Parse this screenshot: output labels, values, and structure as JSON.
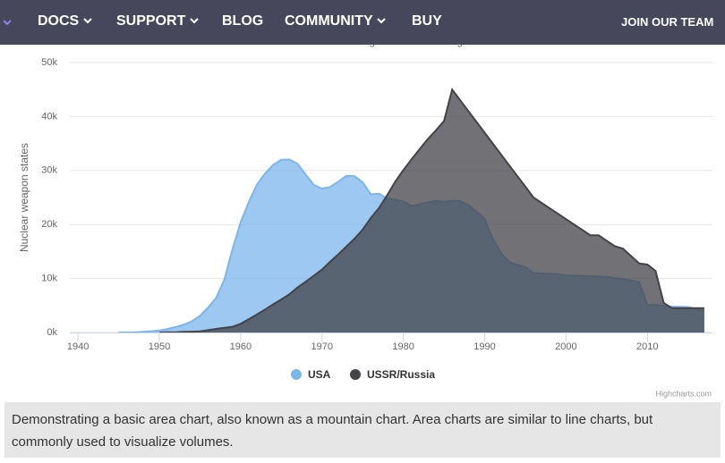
{
  "nav": {
    "items": [
      "DOCS",
      "SUPPORT",
      "BLOG",
      "COMMUNITY",
      "BUY"
    ],
    "cta": "JOIN OUR TEAM"
  },
  "chart_data": {
    "type": "area",
    "subtitle": "Sources: thebulletin.org & armscontrol.org",
    "y_label": "Nuclear weapon states",
    "x": [
      1940,
      1941,
      1942,
      1943,
      1944,
      1945,
      1946,
      1947,
      1948,
      1949,
      1950,
      1951,
      1952,
      1953,
      1954,
      1955,
      1956,
      1957,
      1958,
      1959,
      1960,
      1961,
      1962,
      1963,
      1964,
      1965,
      1966,
      1967,
      1968,
      1969,
      1970,
      1971,
      1972,
      1973,
      1974,
      1975,
      1976,
      1977,
      1978,
      1979,
      1980,
      1981,
      1982,
      1983,
      1984,
      1985,
      1986,
      1987,
      1988,
      1989,
      1990,
      1991,
      1992,
      1993,
      1994,
      1995,
      1996,
      1997,
      1998,
      1999,
      2000,
      2001,
      2002,
      2003,
      2004,
      2005,
      2006,
      2007,
      2008,
      2009,
      2010,
      2011,
      2012,
      2013,
      2014,
      2015,
      2016,
      2017
    ],
    "series": [
      {
        "name": "USA",
        "color": "#7cb5ec",
        "values": [
          null,
          null,
          null,
          null,
          null,
          6,
          11,
          32,
          110,
          235,
          369,
          640,
          1005,
          1436,
          2063,
          3057,
          4618,
          6444,
          9822,
          15468,
          20434,
          24126,
          27387,
          29459,
          31056,
          31982,
          32040,
          31233,
          29224,
          27342,
          26662,
          26956,
          27912,
          28999,
          28965,
          27826,
          25579,
          25722,
          24826,
          24605,
          24304,
          23464,
          23708,
          24099,
          24357,
          24237,
          24401,
          24344,
          23586,
          22380,
          21004,
          17287,
          14747,
          13076,
          12555,
          12144,
          11009,
          10950,
          10871,
          10824,
          10577,
          10527,
          10475,
          10421,
          10358,
          10295,
          10104,
          9914,
          9620,
          9326,
          5113,
          5113,
          4954,
          4804,
          4761,
          4717,
          4368,
          4018
        ]
      },
      {
        "name": "USSR/Russia",
        "color": "#434348",
        "values": [
          null,
          null,
          null,
          null,
          null,
          null,
          null,
          null,
          null,
          null,
          5,
          25,
          50,
          120,
          150,
          200,
          426,
          660,
          869,
          1060,
          1605,
          2471,
          3322,
          4238,
          5221,
          6129,
          7089,
          8339,
          9399,
          10538,
          11643,
          13092,
          14478,
          15915,
          17385,
          19055,
          21205,
          23044,
          25393,
          27935,
          30062,
          32049,
          33952,
          35804,
          37431,
          39197,
          45000,
          43000,
          41000,
          39000,
          37000,
          35000,
          33000,
          31000,
          29000,
          27000,
          25000,
          24000,
          23000,
          22000,
          21000,
          20000,
          19000,
          18000,
          18000,
          17000,
          16000,
          15537,
          14162,
          12787,
          12600,
          11400,
          5500,
          4512,
          4502,
          4502,
          4500,
          4500
        ]
      }
    ],
    "xlim": [
      1939,
      2018
    ],
    "xticks": [
      1940,
      1950,
      1960,
      1970,
      1980,
      1990,
      2000,
      2010
    ],
    "ylim": [
      0,
      50000
    ],
    "yticks": [
      {
        "value": 0,
        "label": "0k"
      },
      {
        "value": 10000,
        "label": "10k"
      },
      {
        "value": 20000,
        "label": "20k"
      },
      {
        "value": 30000,
        "label": "30k"
      },
      {
        "value": 40000,
        "label": "40k"
      },
      {
        "value": 50000,
        "label": "50k"
      }
    ],
    "grid": true,
    "legend": "bottom",
    "credits": "Highcharts.com"
  },
  "description": "Demonstrating a basic area chart, also known as a mountain chart. Area charts are similar to line charts, but commonly used to visualize volumes."
}
